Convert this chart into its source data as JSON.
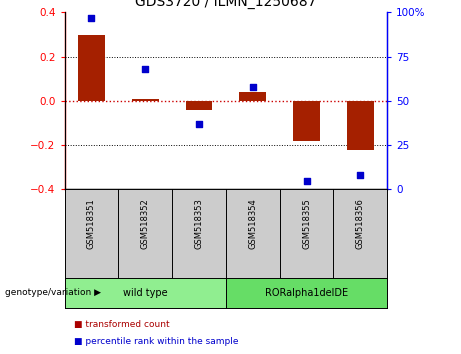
{
  "title": "GDS3720 / ILMN_1250687",
  "samples": [
    "GSM518351",
    "GSM518352",
    "GSM518353",
    "GSM518354",
    "GSM518355",
    "GSM518356"
  ],
  "bar_values": [
    0.3,
    0.01,
    -0.04,
    0.04,
    -0.18,
    -0.22
  ],
  "dot_values": [
    97,
    68,
    37,
    58,
    5,
    8
  ],
  "bar_color": "#A52000",
  "dot_color": "#0000CC",
  "ylim_left": [
    -0.4,
    0.4
  ],
  "ylim_right": [
    0,
    100
  ],
  "yticks_left": [
    -0.4,
    -0.2,
    0.0,
    0.2,
    0.4
  ],
  "yticks_right": [
    0,
    25,
    50,
    75,
    100
  ],
  "ytick_labels_right": [
    "0",
    "25",
    "50",
    "75",
    "100%"
  ],
  "groups": [
    {
      "label": "wild type",
      "samples": [
        0,
        1,
        2
      ],
      "color": "#90EE90"
    },
    {
      "label": "RORalpha1delDE",
      "samples": [
        3,
        4,
        5
      ],
      "color": "#66DD66"
    }
  ],
  "group_label": "genotype/variation",
  "legend": [
    {
      "label": "transformed count",
      "color": "#AA0000"
    },
    {
      "label": "percentile rank within the sample",
      "color": "#0000CC"
    }
  ],
  "background_color": "#FFFFFF",
  "plot_bg_color": "#FFFFFF",
  "tick_box_color": "#CCCCCC",
  "hline_color": "#CC0000",
  "hline_style": ":",
  "grid_style": ":",
  "grid_color": "#000000"
}
